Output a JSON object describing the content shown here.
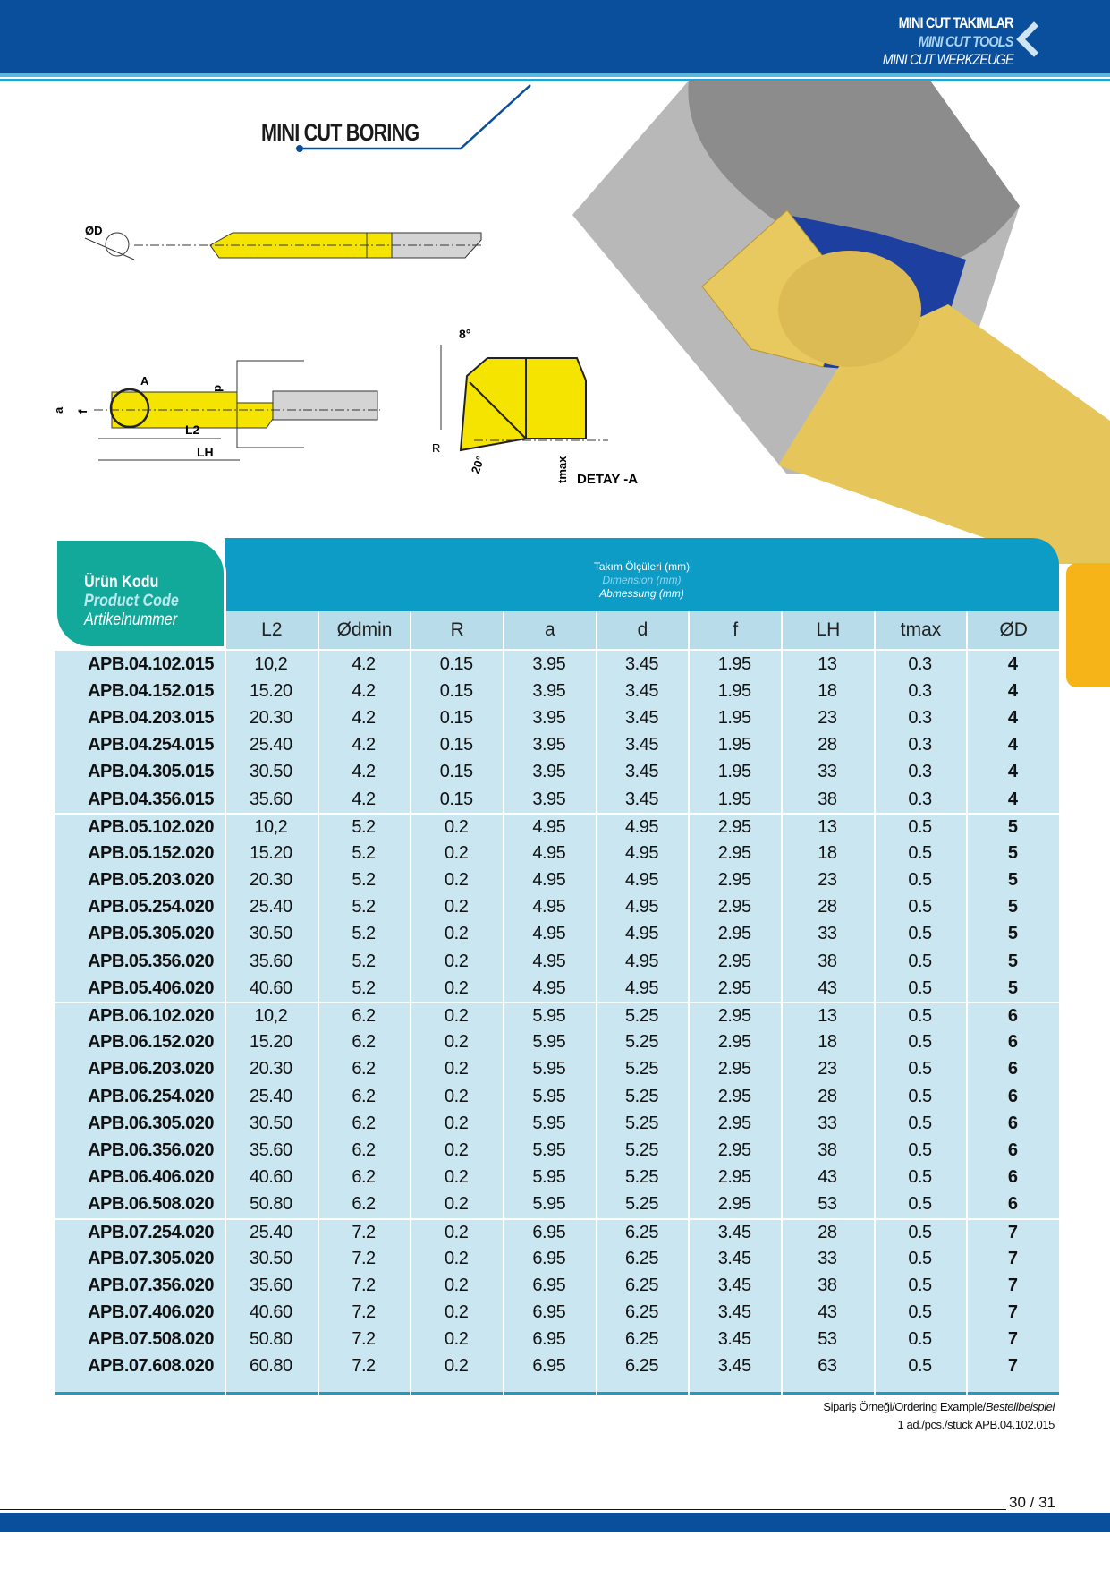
{
  "header": {
    "line1": "MINI CUT TAKIMLAR",
    "line2": "MINI CUT TOOLS",
    "line3": "MINI CUT WERKZEUGE",
    "nav_icon": "chevron-left-icon"
  },
  "title": "MINI CUT  BORING",
  "drawing": {
    "labels": [
      "ØD",
      "A",
      "d",
      "a",
      "f",
      "L2",
      "LH",
      "8°",
      "R",
      "20°",
      "tmax",
      "DETAY -A"
    ]
  },
  "table": {
    "code_header": {
      "tr": "Ürün Kodu",
      "en": "Product Code",
      "de": "Artikelnummer"
    },
    "dim_header": {
      "tr": "Takım Ölçüleri (mm)",
      "en": "Dimension (mm)",
      "de": "Abmessung (mm)"
    },
    "columns": [
      "L2",
      "Ødmin",
      "R",
      "a",
      "d",
      "f",
      "LH",
      "tmax",
      "ØD"
    ],
    "rows": [
      [
        "APB.04.102.015",
        "10,2",
        "4.2",
        "0.15",
        "3.95",
        "3.45",
        "1.95",
        "13",
        "0.3",
        "4"
      ],
      [
        "APB.04.152.015",
        "15.20",
        "4.2",
        "0.15",
        "3.95",
        "3.45",
        "1.95",
        "18",
        "0.3",
        "4"
      ],
      [
        "APB.04.203.015",
        "20.30",
        "4.2",
        "0.15",
        "3.95",
        "3.45",
        "1.95",
        "23",
        "0.3",
        "4"
      ],
      [
        "APB.04.254.015",
        "25.40",
        "4.2",
        "0.15",
        "3.95",
        "3.45",
        "1.95",
        "28",
        "0.3",
        "4"
      ],
      [
        "APB.04.305.015",
        "30.50",
        "4.2",
        "0.15",
        "3.95",
        "3.45",
        "1.95",
        "33",
        "0.3",
        "4"
      ],
      [
        "APB.04.356.015",
        "35.60",
        "4.2",
        "0.15",
        "3.95",
        "3.45",
        "1.95",
        "38",
        "0.3",
        "4"
      ],
      [
        "APB.05.102.020",
        "10,2",
        "5.2",
        "0.2",
        "4.95",
        "4.95",
        "2.95",
        "13",
        "0.5",
        "5"
      ],
      [
        "APB.05.152.020",
        "15.20",
        "5.2",
        "0.2",
        "4.95",
        "4.95",
        "2.95",
        "18",
        "0.5",
        "5"
      ],
      [
        "APB.05.203.020",
        "20.30",
        "5.2",
        "0.2",
        "4.95",
        "4.95",
        "2.95",
        "23",
        "0.5",
        "5"
      ],
      [
        "APB.05.254.020",
        "25.40",
        "5.2",
        "0.2",
        "4.95",
        "4.95",
        "2.95",
        "28",
        "0.5",
        "5"
      ],
      [
        "APB.05.305.020",
        "30.50",
        "5.2",
        "0.2",
        "4.95",
        "4.95",
        "2.95",
        "33",
        "0.5",
        "5"
      ],
      [
        "APB.05.356.020",
        "35.60",
        "5.2",
        "0.2",
        "4.95",
        "4.95",
        "2.95",
        "38",
        "0.5",
        "5"
      ],
      [
        "APB.05.406.020",
        "40.60",
        "5.2",
        "0.2",
        "4.95",
        "4.95",
        "2.95",
        "43",
        "0.5",
        "5"
      ],
      [
        "APB.06.102.020",
        "10,2",
        "6.2",
        "0.2",
        "5.95",
        "5.25",
        "2.95",
        "13",
        "0.5",
        "6"
      ],
      [
        "APB.06.152.020",
        "15.20",
        "6.2",
        "0.2",
        "5.95",
        "5.25",
        "2.95",
        "18",
        "0.5",
        "6"
      ],
      [
        "APB.06.203.020",
        "20.30",
        "6.2",
        "0.2",
        "5.95",
        "5.25",
        "2.95",
        "23",
        "0.5",
        "6"
      ],
      [
        "APB.06.254.020",
        "25.40",
        "6.2",
        "0.2",
        "5.95",
        "5.25",
        "2.95",
        "28",
        "0.5",
        "6"
      ],
      [
        "APB.06.305.020",
        "30.50",
        "6.2",
        "0.2",
        "5.95",
        "5.25",
        "2.95",
        "33",
        "0.5",
        "6"
      ],
      [
        "APB.06.356.020",
        "35.60",
        "6.2",
        "0.2",
        "5.95",
        "5.25",
        "2.95",
        "38",
        "0.5",
        "6"
      ],
      [
        "APB.06.406.020",
        "40.60",
        "6.2",
        "0.2",
        "5.95",
        "5.25",
        "2.95",
        "43",
        "0.5",
        "6"
      ],
      [
        "APB.06.508.020",
        "50.80",
        "6.2",
        "0.2",
        "5.95",
        "5.25",
        "2.95",
        "53",
        "0.5",
        "6"
      ],
      [
        "APB.07.254.020",
        "25.40",
        "7.2",
        "0.2",
        "6.95",
        "6.25",
        "3.45",
        "28",
        "0.5",
        "7"
      ],
      [
        "APB.07.305.020",
        "30.50",
        "7.2",
        "0.2",
        "6.95",
        "6.25",
        "3.45",
        "33",
        "0.5",
        "7"
      ],
      [
        "APB.07.356.020",
        "35.60",
        "7.2",
        "0.2",
        "6.95",
        "6.25",
        "3.45",
        "38",
        "0.5",
        "7"
      ],
      [
        "APB.07.406.020",
        "40.60",
        "7.2",
        "0.2",
        "6.95",
        "6.25",
        "3.45",
        "43",
        "0.5",
        "7"
      ],
      [
        "APB.07.508.020",
        "50.80",
        "7.2",
        "0.2",
        "6.95",
        "6.25",
        "3.45",
        "53",
        "0.5",
        "7"
      ],
      [
        "APB.07.608.020",
        "60.80",
        "7.2",
        "0.2",
        "6.95",
        "6.25",
        "3.45",
        "63",
        "0.5",
        "7"
      ]
    ]
  },
  "order_example": {
    "label": "Sipariş Örneği/Ordering Example/",
    "label_de": "Bestellbeispiel",
    "value": "1 ad./pcs./stück APB.04.102.015"
  },
  "page_number": "30 / 31",
  "colors": {
    "brand_blue": "#0a4f9c",
    "teal": "#12a99a",
    "table_blue": "#0d9cc6",
    "row_bg": "#c9e6f1",
    "tab_yellow": "#f6b418",
    "tool_yellow": "#f5e400"
  }
}
